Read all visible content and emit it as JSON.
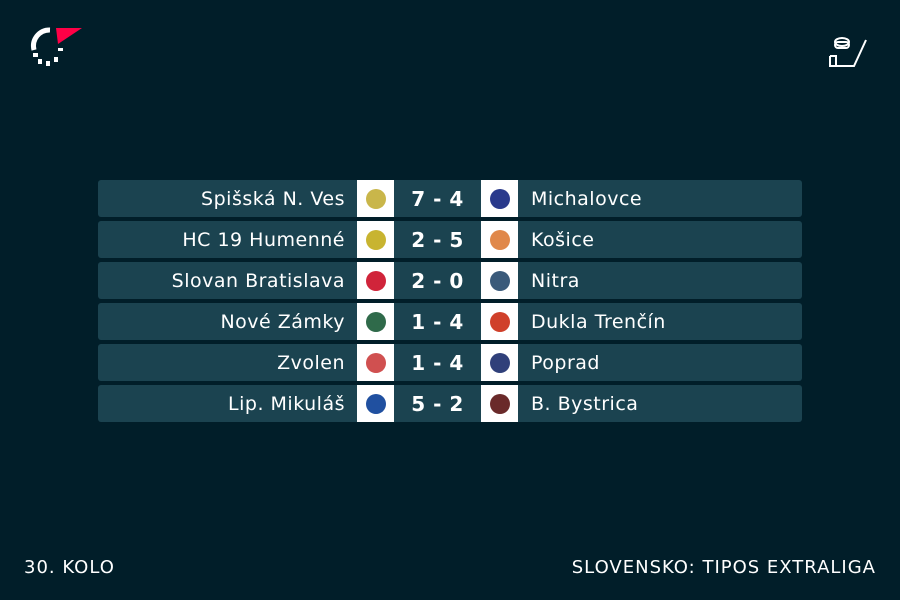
{
  "matches": [
    {
      "home": "Spišská N. Ves",
      "score": "7 - 4",
      "away": "Michalovce",
      "home_color": "#c9b64a",
      "away_color": "#2a3a8c"
    },
    {
      "home": "HC 19 Humenné",
      "score": "2 - 5",
      "away": "Košice",
      "home_color": "#c8b430",
      "away_color": "#e0884a"
    },
    {
      "home": "Slovan Bratislava",
      "score": "2 - 0",
      "away": "Nitra",
      "home_color": "#d0243a",
      "away_color": "#3a5a7a"
    },
    {
      "home": "Nové Zámky",
      "score": "1 - 4",
      "away": "Dukla Trenčín",
      "home_color": "#2f6a4a",
      "away_color": "#d0402a"
    },
    {
      "home": "Zvolen",
      "score": "1 - 4",
      "away": "Poprad",
      "home_color": "#d05050",
      "away_color": "#30407a"
    },
    {
      "home": "Lip. Mikuláš",
      "score": "5 - 2",
      "away": "B. Bystrica",
      "home_color": "#2050a0",
      "away_color": "#6a2a2a"
    }
  ],
  "footer": {
    "round": "30. KOLO",
    "league": "SLOVENSKO: TIPOS EXTRALIGA"
  },
  "colors": {
    "accent": "#ff0046",
    "background": "#011e29",
    "row": "#1b4350"
  }
}
